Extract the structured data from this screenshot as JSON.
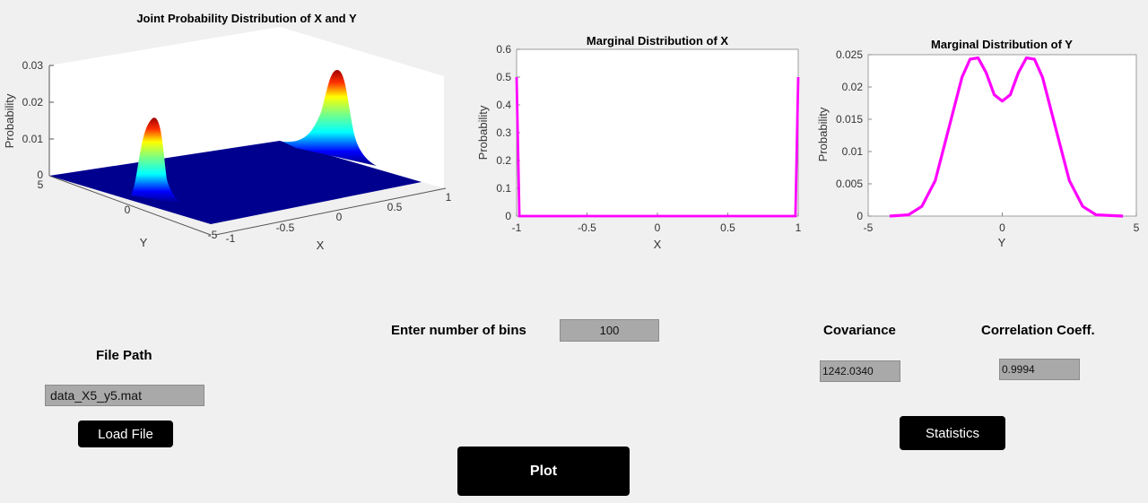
{
  "chart_data": [
    {
      "type": "surface",
      "title": "Joint Probability Distribution of X and Y",
      "xlabel": "X",
      "ylabel": "Y",
      "zlabel": "Probability",
      "xlim": [
        -1,
        1
      ],
      "ylim": [
        -5,
        5
      ],
      "zlim": [
        0,
        0.03
      ],
      "x_ticks": [
        "-1",
        "-0.5",
        "0",
        "0.5",
        "1"
      ],
      "y_ticks": [
        "5",
        "0",
        "-5"
      ],
      "z_ticks": [
        "0",
        "0.01",
        "0.02",
        "0.03"
      ],
      "colormap": "jet",
      "peaks": [
        {
          "x": -1,
          "y": -1,
          "z": 0.025
        },
        {
          "x": 1,
          "y": 1,
          "z": 0.025
        }
      ]
    },
    {
      "type": "line",
      "title": "Marginal Distribution of X",
      "xlabel": "X",
      "ylabel": "Probability",
      "xlim": [
        -1,
        1
      ],
      "ylim": [
        0,
        0.6
      ],
      "x_ticks": [
        "-1",
        "-0.5",
        "0",
        "0.5",
        "1"
      ],
      "y_ticks": [
        "0",
        "0.1",
        "0.2",
        "0.3",
        "0.4",
        "0.5",
        "0.6"
      ],
      "color": "#ff00ff",
      "x": [
        -1,
        -0.98,
        0.98,
        1
      ],
      "y": [
        0.5,
        0,
        0,
        0.5
      ]
    },
    {
      "type": "line",
      "title": "Marginal Distribution of Y",
      "xlabel": "Y",
      "ylabel": "Probability",
      "xlim": [
        -5,
        5
      ],
      "ylim": [
        0,
        0.025
      ],
      "x_ticks": [
        "-5",
        "0",
        "5"
      ],
      "y_ticks": [
        "0",
        "0.005",
        "0.01",
        "0.015",
        "0.02",
        "0.025"
      ],
      "color": "#ff00ff",
      "x": [
        -4.2,
        -3.5,
        -3.0,
        -2.5,
        -2.0,
        -1.5,
        -1.2,
        -0.9,
        -0.6,
        -0.3,
        0,
        0.3,
        0.6,
        0.9,
        1.2,
        1.5,
        2.0,
        2.5,
        3.0,
        3.5,
        4.5
      ],
      "y": [
        0,
        0.0002,
        0.0015,
        0.0055,
        0.0135,
        0.0215,
        0.0243,
        0.0245,
        0.0222,
        0.0188,
        0.0178,
        0.0188,
        0.0222,
        0.0245,
        0.0243,
        0.0215,
        0.0135,
        0.0055,
        0.0015,
        0.0002,
        0
      ]
    }
  ],
  "controls": {
    "bins_label": "Enter number of bins",
    "bins_value": "100",
    "file_path_label": "File Path",
    "file_path_value": "data_X5_y5.mat",
    "load_button": "Load File",
    "plot_button": "Plot",
    "covariance_label": "Covariance",
    "covariance_value": "1242.0340",
    "correlation_label": "Correlation Coeff.",
    "correlation_value": "0.9994",
    "statistics_button": "Statistics"
  }
}
